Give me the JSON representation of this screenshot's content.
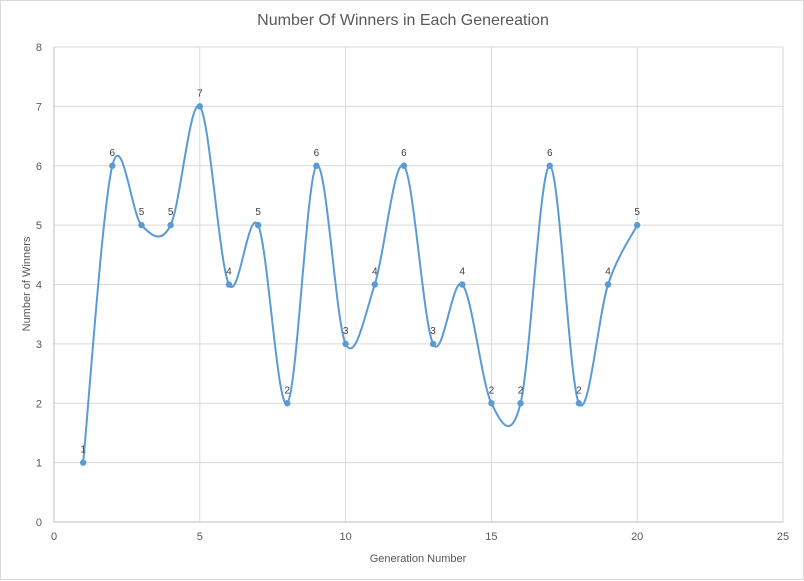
{
  "chart_data": {
    "type": "line",
    "title": "Number Of Winners in Each Genereation",
    "xlabel": "Generation Number",
    "ylabel": "Number of Winners",
    "xlim": [
      0,
      25
    ],
    "ylim": [
      0,
      8
    ],
    "x_ticks": [
      0,
      5,
      10,
      15,
      20,
      25
    ],
    "y_ticks": [
      0,
      1,
      2,
      3,
      4,
      5,
      6,
      7,
      8
    ],
    "smoothed": true,
    "grid": true,
    "legend": "none",
    "series_color": "#5b9bd5",
    "series": [
      {
        "x": [
          1,
          2,
          3,
          4,
          5,
          6,
          7,
          8,
          9,
          10,
          11,
          12,
          13,
          14,
          15,
          16,
          17,
          18,
          19,
          20
        ],
        "values": [
          1,
          6,
          5,
          5,
          7,
          4,
          5,
          2,
          6,
          3,
          4,
          6,
          3,
          4,
          2,
          2,
          6,
          2,
          4,
          5
        ]
      }
    ]
  }
}
